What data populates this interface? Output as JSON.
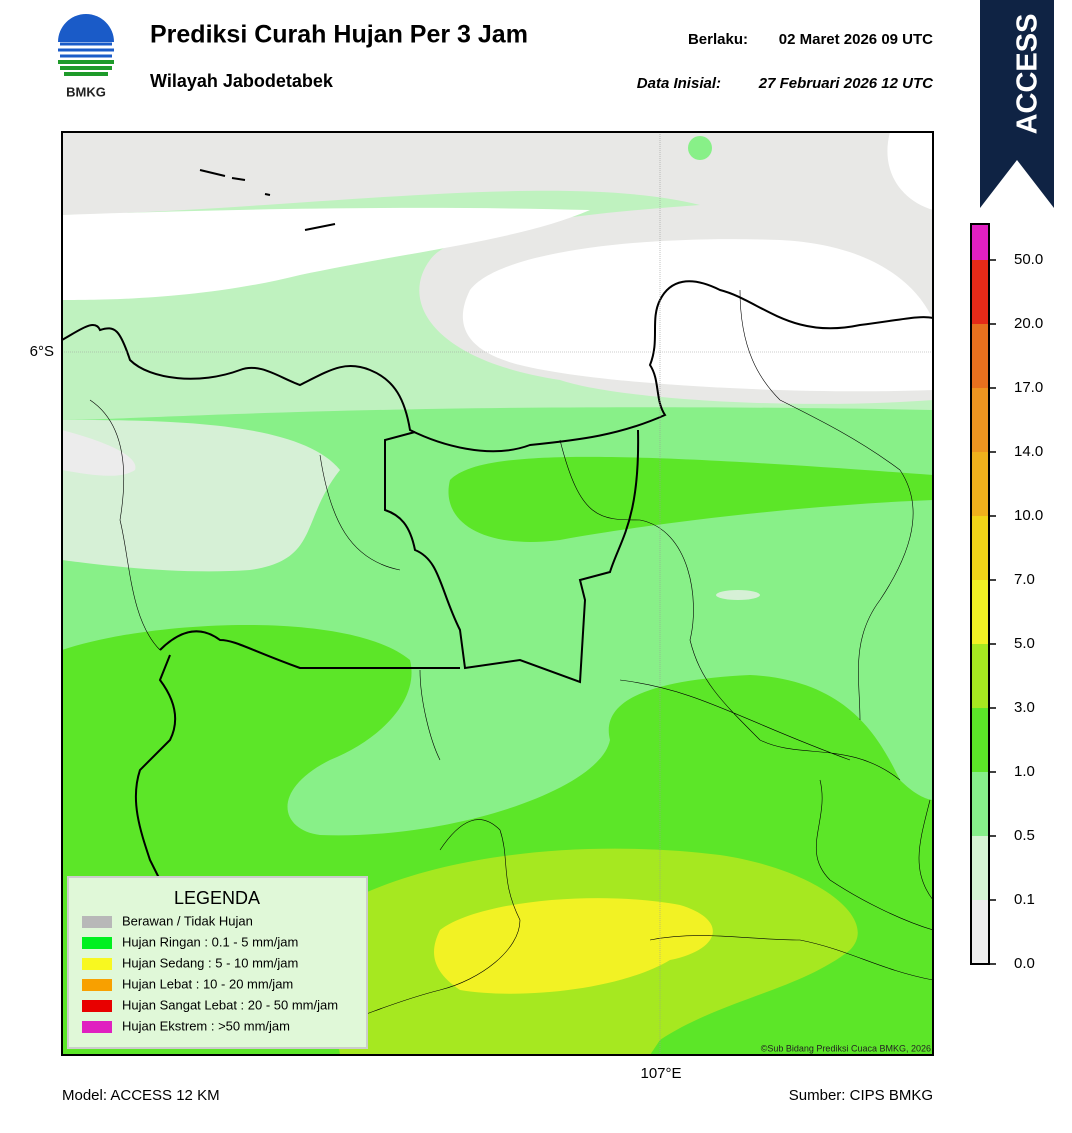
{
  "header": {
    "logo_text": "BMKG",
    "title": "Prediksi Curah Hujan Per 3 Jam",
    "subtitle": "Wilayah Jabodetabek",
    "valid_label": "Berlaku:",
    "valid_date": "02 Maret 2026 09 UTC",
    "init_label": "Data Inisial:",
    "init_date": "27 Februari 2026 12 UTC",
    "model_badge": "ACCESS"
  },
  "map": {
    "lat_label": "6°S",
    "lon_label": "107°E",
    "credit": "©Sub Bidang Prediksi Cuaca BMKG, 2026"
  },
  "colorbar": {
    "tick_labels": [
      "0.0",
      "0.1",
      "0.5",
      "1.0",
      "3.0",
      "5.0",
      "7.0",
      "10.0",
      "14.0",
      "17.0",
      "20.0",
      "50.0"
    ],
    "colors": [
      "#eeeeee",
      "#d6f5d4",
      "#86f08a",
      "#5ce628",
      "#a6e820",
      "#f2f224",
      "#f2d418",
      "#f0b01c",
      "#ee9420",
      "#e8701e",
      "#e62a18",
      "#e020c0"
    ]
  },
  "legend": {
    "title": "LEGENDA",
    "items": [
      {
        "label": "Berawan / Tidak Hujan",
        "color": "#b8b8b8"
      },
      {
        "label": "Hujan Ringan : 0.1 - 5 mm/jam",
        "color": "#00f020"
      },
      {
        "label": "Hujan Sedang : 5 - 10 mm/jam",
        "color": "#f8f820"
      },
      {
        "label": "Hujan Lebat : 10 - 20 mm/jam",
        "color": "#f8a000"
      },
      {
        "label": "Hujan Sangat Lebat : 20 - 50 mm/jam",
        "color": "#e80000"
      },
      {
        "label": "Hujan Ekstrem : >50 mm/jam",
        "color": "#e020c0"
      }
    ]
  },
  "footer": {
    "model": "Model: ACCESS 12 KM",
    "source": "Sumber: CIPS BMKG"
  }
}
